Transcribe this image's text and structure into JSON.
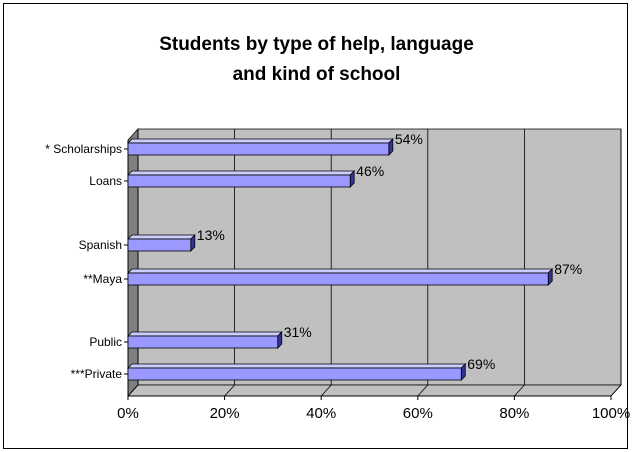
{
  "chart_data": {
    "type": "bar",
    "orientation": "horizontal",
    "style": "3d",
    "title_lines": [
      "Students by type of help, language",
      "and kind of school"
    ],
    "categories": [
      "* Scholarships",
      "Loans",
      "Spanish",
      "**Maya",
      "Public",
      "***Private"
    ],
    "values": [
      54,
      46,
      13,
      87,
      31,
      69
    ],
    "data_labels": [
      "54%",
      "46%",
      "13%",
      "87%",
      "31%",
      "69%"
    ],
    "xlim": [
      0,
      100
    ],
    "x_ticks": [
      "0%",
      "20%",
      "40%",
      "60%",
      "80%",
      "100%"
    ],
    "grid": true,
    "legend": "none",
    "colors": {
      "bar_front": "#9999ff",
      "bar_top": "#ccccff",
      "bar_side": "#333399",
      "plot_wall": "#c0c0c0",
      "plot_floor": "#808080"
    }
  }
}
